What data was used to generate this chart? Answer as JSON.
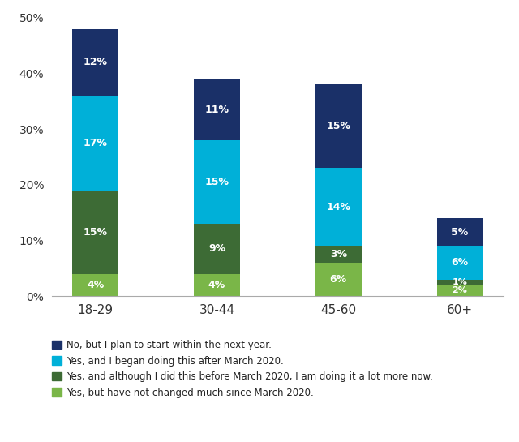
{
  "categories": [
    "18-29",
    "30-44",
    "45-60",
    "60+"
  ],
  "series": [
    {
      "label": "Yes, but have not changed much since March 2020.",
      "color": "#7ab648",
      "values": [
        4,
        4,
        6,
        2
      ]
    },
    {
      "label": "Yes, and although I did this before March 2020, I am doing it a lot more now.",
      "color": "#3d6b35",
      "values": [
        15,
        9,
        3,
        1
      ]
    },
    {
      "label": "Yes, and I began doing this after March 2020.",
      "color": "#00b0d8",
      "values": [
        17,
        15,
        14,
        6
      ]
    },
    {
      "label": "No, but I plan to start within the next year.",
      "color": "#1a3068",
      "values": [
        12,
        11,
        15,
        5
      ]
    }
  ],
  "legend_order": [
    3,
    2,
    1,
    0
  ],
  "ylim": [
    0,
    50
  ],
  "yticks": [
    0,
    10,
    20,
    30,
    40,
    50
  ],
  "background_color": "#ffffff",
  "bar_width": 0.38
}
